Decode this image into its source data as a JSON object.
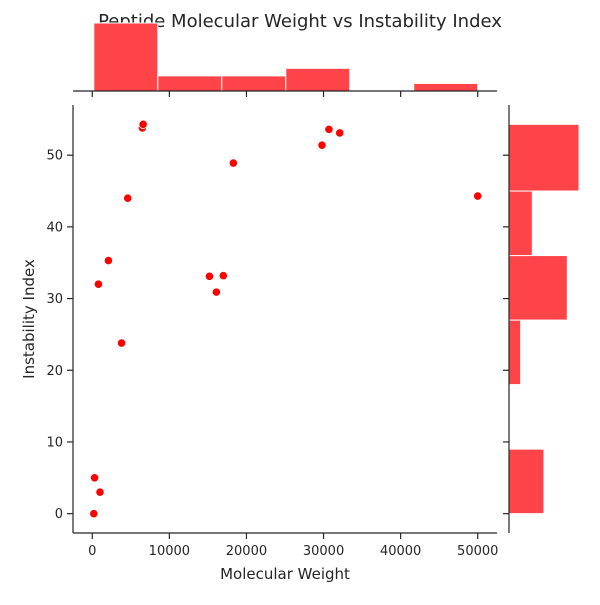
{
  "chart_data": {
    "type": "scatter",
    "title": "Peptide Molecular Weight vs Instability Index",
    "xlabel": "Molecular Weight",
    "ylabel": "Instability Index",
    "xlim": [
      -2500,
      52500
    ],
    "ylim": [
      -2.7,
      57
    ],
    "xticks": [
      0,
      10000,
      20000,
      30000,
      40000,
      50000
    ],
    "xtick_labels": [
      "0",
      "10000",
      "20000",
      "30000",
      "40000",
      "50000"
    ],
    "yticks": [
      0,
      10,
      20,
      30,
      40,
      50
    ],
    "ytick_labels": [
      "0",
      "10",
      "20",
      "30",
      "40",
      "50"
    ],
    "grid": false,
    "color": "#ff0000",
    "hist_color": "#ff4449",
    "points": [
      {
        "x": 200,
        "y": 0
      },
      {
        "x": 300,
        "y": 5
      },
      {
        "x": 1000,
        "y": 3
      },
      {
        "x": 800,
        "y": 32
      },
      {
        "x": 2100,
        "y": 35.3
      },
      {
        "x": 3800,
        "y": 23.8
      },
      {
        "x": 4600,
        "y": 44
      },
      {
        "x": 6500,
        "y": 53.8
      },
      {
        "x": 6600,
        "y": 54.3
      },
      {
        "x": 15200,
        "y": 33.1
      },
      {
        "x": 16100,
        "y": 30.9
      },
      {
        "x": 17000,
        "y": 33.2
      },
      {
        "x": 18300,
        "y": 48.9
      },
      {
        "x": 29800,
        "y": 51.4
      },
      {
        "x": 30700,
        "y": 53.6
      },
      {
        "x": 32100,
        "y": 53.1
      },
      {
        "x": 50000,
        "y": 44.3
      }
    ],
    "x_hist": {
      "bins": [
        200,
        8500,
        16800,
        25100,
        33400,
        41700,
        50000
      ],
      "counts": [
        9,
        2,
        2,
        3,
        0,
        1
      ]
    },
    "y_hist": {
      "bins": [
        0,
        9,
        18,
        27,
        36,
        45,
        54.3
      ],
      "counts": [
        3,
        0,
        1,
        5,
        2,
        6
      ]
    }
  }
}
